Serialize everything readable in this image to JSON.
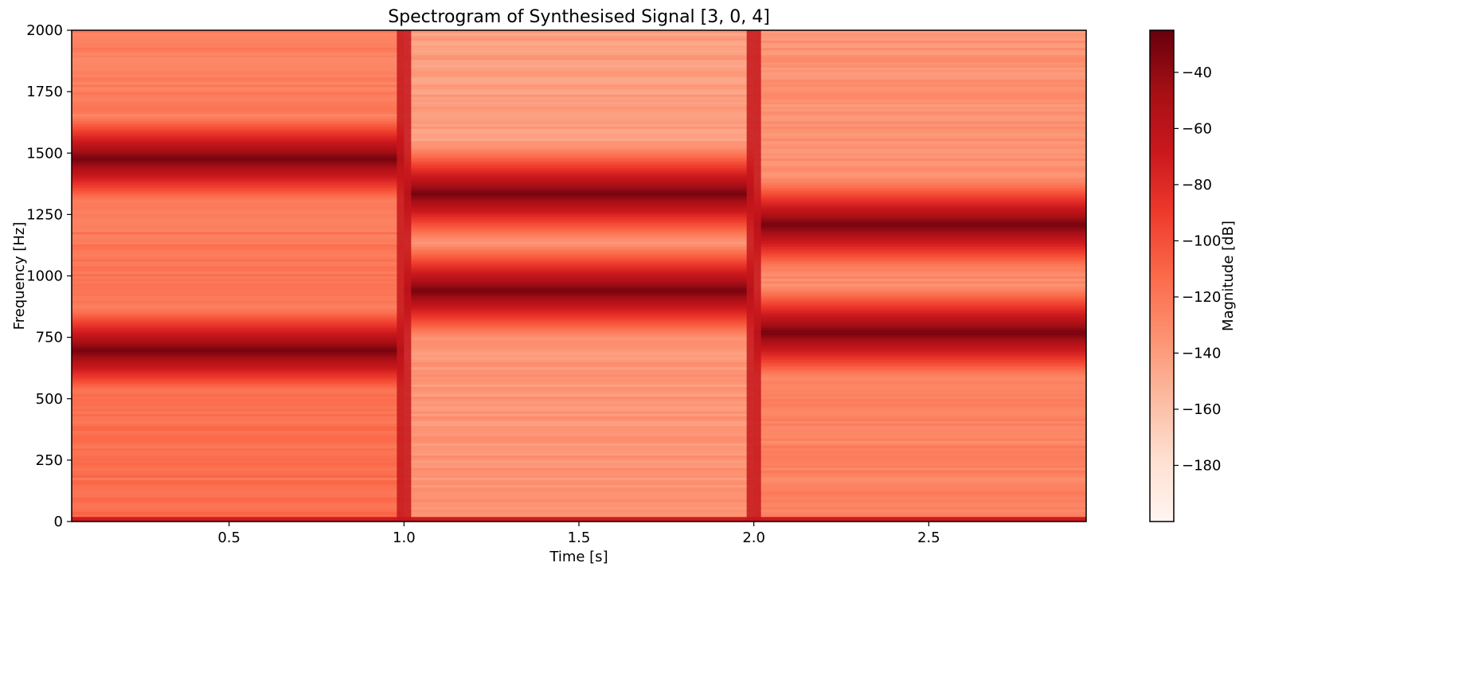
{
  "chart_data": {
    "type": "heatmap",
    "title": "Spectrogram of Synthesised Signal [3, 0, 4]",
    "xlabel": "Time [s]",
    "ylabel": "Frequency [Hz]",
    "xlim": [
      0.05,
      2.95
    ],
    "ylim": [
      0,
      2000
    ],
    "xticks": [
      {
        "value": 0.5,
        "label": "0.5"
      },
      {
        "value": 1.0,
        "label": "1.0"
      },
      {
        "value": 1.5,
        "label": "1.5"
      },
      {
        "value": 2.0,
        "label": "2.0"
      },
      {
        "value": 2.5,
        "label": "2.5"
      }
    ],
    "yticks": [
      {
        "value": 0,
        "label": "0"
      },
      {
        "value": 250,
        "label": "250"
      },
      {
        "value": 500,
        "label": "500"
      },
      {
        "value": 750,
        "label": "750"
      },
      {
        "value": 1000,
        "label": "1000"
      },
      {
        "value": 1250,
        "label": "1250"
      },
      {
        "value": 1500,
        "label": "1500"
      },
      {
        "value": 1750,
        "label": "1750"
      },
      {
        "value": 2000,
        "label": "2000"
      }
    ],
    "colormap": "Reds",
    "colorbar": {
      "label": "Magnitude [dB]",
      "range": [
        -200,
        -25
      ],
      "ticks": [
        {
          "value": -40,
          "label": "−40"
        },
        {
          "value": -60,
          "label": "−60"
        },
        {
          "value": -80,
          "label": "−80"
        },
        {
          "value": -100,
          "label": "−100"
        },
        {
          "value": -120,
          "label": "−120"
        },
        {
          "value": -140,
          "label": "−140"
        },
        {
          "value": -160,
          "label": "−160"
        },
        {
          "value": -180,
          "label": "−180"
        }
      ]
    },
    "segments": [
      {
        "digit": "3",
        "t_start": 0.0,
        "t_end": 1.0,
        "tones_hz": [
          697,
          1477
        ],
        "background_db": -115
      },
      {
        "digit": "0",
        "t_start": 1.0,
        "t_end": 2.0,
        "tones_hz": [
          941,
          1336
        ],
        "background_db": -135
      },
      {
        "digit": "4",
        "t_start": 2.0,
        "t_end": 3.0,
        "tones_hz": [
          770,
          1209
        ],
        "background_db": -125
      }
    ],
    "tone_peak_db": -30,
    "transition_times_s": [
      1.0,
      2.0
    ],
    "transition_db": -65
  }
}
